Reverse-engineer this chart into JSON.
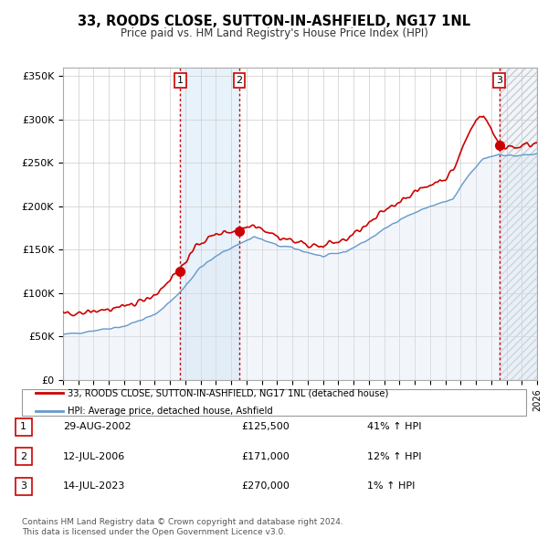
{
  "title": "33, ROODS CLOSE, SUTTON-IN-ASHFIELD, NG17 1NL",
  "subtitle": "Price paid vs. HM Land Registry's House Price Index (HPI)",
  "legend_line1": "33, ROODS CLOSE, SUTTON-IN-ASHFIELD, NG17 1NL (detached house)",
  "legend_line2": "HPI: Average price, detached house, Ashfield",
  "footer1": "Contains HM Land Registry data © Crown copyright and database right 2024.",
  "footer2": "This data is licensed under the Open Government Licence v3.0.",
  "sale_color": "#cc0000",
  "hpi_color": "#6699cc",
  "hpi_fill_color": "#dae6f3",
  "shade_color": "#daeaf7",
  "hatch_color": "#cccccc",
  "vline_color": "#cc0000",
  "ylim": [
    0,
    360000
  ],
  "ytick_labels": [
    "£0",
    "£50K",
    "£100K",
    "£150K",
    "£200K",
    "£250K",
    "£300K",
    "£350K"
  ],
  "ytick_values": [
    0,
    50000,
    100000,
    150000,
    200000,
    250000,
    300000,
    350000
  ],
  "sales": [
    {
      "date": "2002-08-29",
      "price": 125500,
      "label": "1"
    },
    {
      "date": "2006-07-12",
      "price": 171000,
      "label": "2"
    },
    {
      "date": "2023-07-14",
      "price": 270000,
      "label": "3"
    }
  ],
  "table_rows": [
    {
      "num": "1",
      "date": "29-AUG-2002",
      "price": "£125,500",
      "pct": "41% ↑ HPI"
    },
    {
      "num": "2",
      "date": "12-JUL-2006",
      "price": "£171,000",
      "pct": "12% ↑ HPI"
    },
    {
      "num": "3",
      "date": "14-JUL-2023",
      "price": "£270,000",
      "pct": "1% ↑ HPI"
    }
  ],
  "x_start_year": 1995,
  "x_end_year": 2026
}
